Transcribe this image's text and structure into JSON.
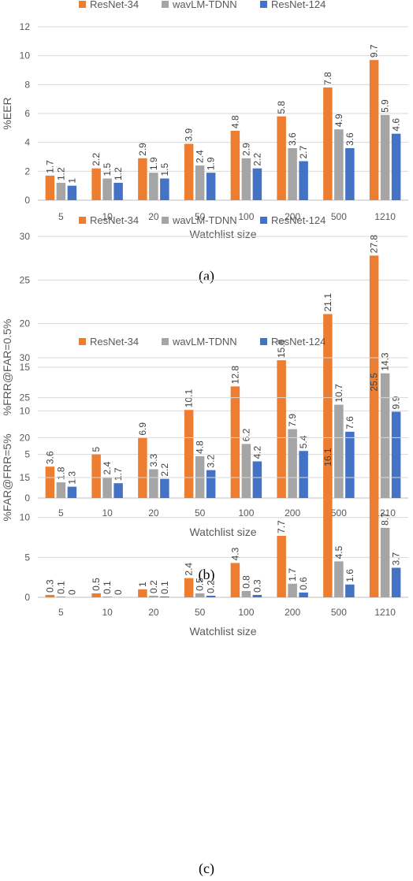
{
  "colors": {
    "ResNet-34": "#ed7d31",
    "wavLM-TDNN": "#a5a5a5",
    "ResNet-124": "#4472c4"
  },
  "chart_data": [
    {
      "type": "bar",
      "caption": "(a)",
      "xlabel": "Watchlist size",
      "ylabel": "%EER",
      "ylim": [
        0,
        12
      ],
      "yticks": [
        0,
        2,
        4,
        6,
        8,
        10,
        12
      ],
      "categories": [
        "5",
        "10",
        "20",
        "50",
        "100",
        "200",
        "500",
        "1210"
      ],
      "legend": "top",
      "grid": true,
      "series": [
        {
          "name": "ResNet-34",
          "values": [
            1.7,
            2.2,
            2.9,
            3.9,
            4.8,
            5.8,
            7.8,
            9.7
          ]
        },
        {
          "name": "wavLM-TDNN",
          "values": [
            1.2,
            1.5,
            1.9,
            2.4,
            2.9,
            3.6,
            4.9,
            5.9
          ]
        },
        {
          "name": "ResNet-124",
          "values": [
            1,
            1.2,
            1.5,
            1.9,
            2.2,
            2.7,
            3.6,
            4.6
          ]
        }
      ]
    },
    {
      "type": "bar",
      "caption": "(b)",
      "xlabel": "Watchlist size",
      "ylabel": "%FRR@FAR=0.5%",
      "ylim": [
        0,
        30
      ],
      "yticks": [
        0,
        5,
        10,
        15,
        20,
        25,
        30
      ],
      "categories": [
        "5",
        "10",
        "20",
        "50",
        "100",
        "200",
        "500",
        "1210"
      ],
      "legend": "top",
      "grid": true,
      "series": [
        {
          "name": "ResNet-34",
          "values": [
            3.6,
            5,
            6.9,
            10.1,
            12.8,
            15.8,
            21.1,
            27.8
          ]
        },
        {
          "name": "wavLM-TDNN",
          "values": [
            1.8,
            2.4,
            3.3,
            4.8,
            6.2,
            7.9,
            10.7,
            14.3
          ]
        },
        {
          "name": "ResNet-124",
          "values": [
            1.3,
            1.7,
            2.2,
            3.2,
            4.2,
            5.4,
            7.6,
            9.9
          ]
        }
      ]
    },
    {
      "type": "bar",
      "caption": "(c)",
      "xlabel": "Watchlist size",
      "ylabel": "%FAR@FRR=5%",
      "ylim": [
        0,
        30
      ],
      "yticks": [
        0,
        5,
        10,
        15,
        20,
        25,
        30
      ],
      "categories": [
        "5",
        "10",
        "20",
        "50",
        "100",
        "200",
        "500",
        "1210"
      ],
      "legend": "top",
      "grid": true,
      "series": [
        {
          "name": "ResNet-34",
          "values": [
            0.3,
            0.5,
            1,
            2.4,
            4.3,
            7.7,
            16.1,
            25.5
          ]
        },
        {
          "name": "wavLM-TDNN",
          "values": [
            0.1,
            0.1,
            0.2,
            0.5,
            0.8,
            1.7,
            4.5,
            8.7
          ]
        },
        {
          "name": "ResNet-124",
          "values": [
            0,
            0,
            0.1,
            0.2,
            0.3,
            0.6,
            1.6,
            3.7
          ]
        }
      ]
    }
  ]
}
